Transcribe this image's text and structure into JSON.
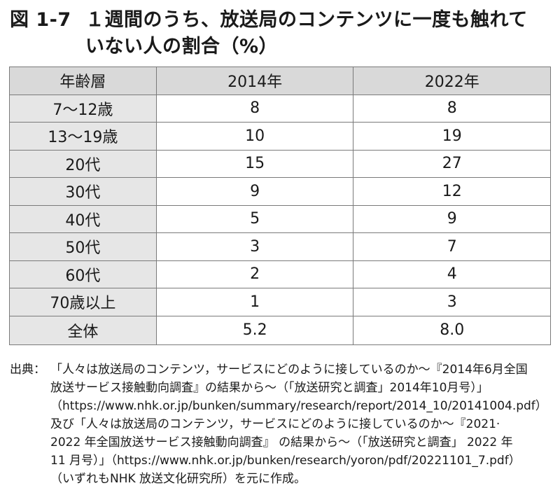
{
  "title": {
    "number": "図 1-7",
    "line1": "１週間のうち、放送局のコンテンツに一度も触れて",
    "line2": "いない人の割合（%）"
  },
  "table": {
    "headers": [
      "年齢層",
      "2014年",
      "2022年"
    ],
    "rows": [
      {
        "age": "7～12歳",
        "y2014": "8",
        "y2022": "8"
      },
      {
        "age": "13～19歳",
        "y2014": "10",
        "y2022": "19"
      },
      {
        "age": "20代",
        "y2014": "15",
        "y2022": "27"
      },
      {
        "age": "30代",
        "y2014": "9",
        "y2022": "12"
      },
      {
        "age": "40代",
        "y2014": "5",
        "y2022": "9"
      },
      {
        "age": "50代",
        "y2014": "3",
        "y2022": "7"
      },
      {
        "age": "60代",
        "y2014": "2",
        "y2022": "4"
      },
      {
        "age": "70歳以上",
        "y2014": "1",
        "y2022": "3"
      },
      {
        "age": "全体",
        "y2014": "5.2",
        "y2022": "8.0"
      }
    ]
  },
  "source": {
    "label": "出典：",
    "lines": [
      "「人々は放送局のコンテンツ，サービスにどのように接しているのか～『2014年6月全国",
      "放送サービス接触動向調査』の結果から～（「放送研究と調査」2014年10月号）」",
      "（https://www.nhk.or.jp/bunken/summary/research/report/2014_10/20141004.pdf）",
      "及び「人々は放送局のコンテンツ，サービスにどのように接しているのか～『2021·",
      "2022 年全国放送サービス接触動向調査』 の結果から～（「放送研究と調査」 2022 年",
      "11 月号）」（https://www.nhk.or.jp/bunken/research/yoron/pdf/20221101_7.pdf）",
      "（いずれもNHK 放送文化研究所）を元に作成。"
    ]
  }
}
